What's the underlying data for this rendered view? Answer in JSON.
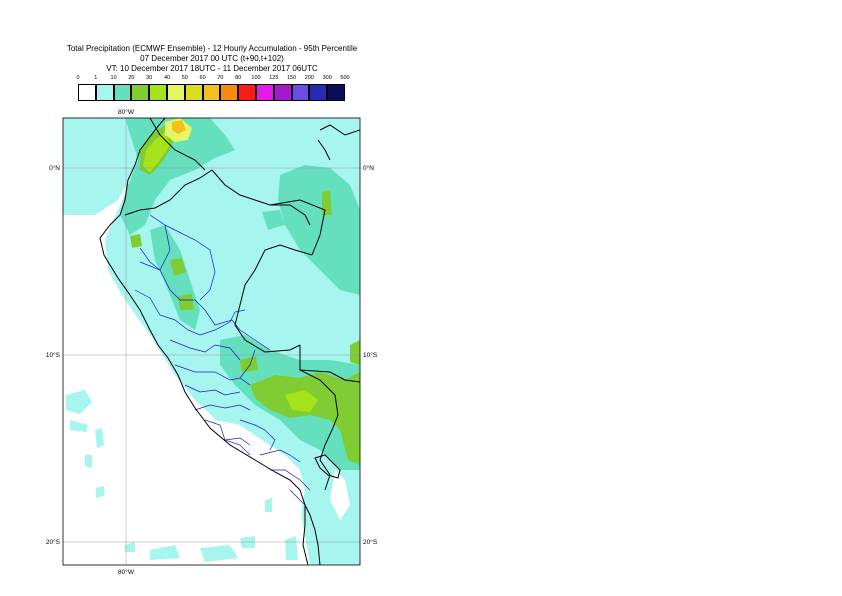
{
  "title": {
    "line1": "Total Precipitation (ECMWF Ensemble) - 12 Hourly Accumulation - 95th Percentile",
    "line2": "07 December 2017 00 UTC (t+90,t+102)",
    "line3": "VT: 10 December 2017 18UTC - 11 December 2017 06UTC"
  },
  "legend": {
    "thresholds": [
      "0",
      "1",
      "10",
      "20",
      "30",
      "40",
      "50",
      "60",
      "70",
      "80",
      "100",
      "125",
      "150",
      "200",
      "300",
      "500"
    ],
    "colors": [
      "#ffffff",
      "#a6f5ef",
      "#65e0bf",
      "#7fcc33",
      "#a6e31a",
      "#e6f566",
      "#d9de1f",
      "#f2c01f",
      "#f78a0f",
      "#ff1a1a",
      "#e619e6",
      "#a319cc",
      "#6b4de6",
      "#2929b3",
      "#0d0d59"
    ]
  },
  "map": {
    "lon_label": "80°W",
    "lat_labels": [
      "0°N",
      "10°S",
      "20°S"
    ],
    "colors": {
      "ocean": "#ffffff",
      "light": "#a6f5ef",
      "medium": "#65e0bf",
      "green": "#7fcc33",
      "yellowgreen": "#a6e31a",
      "yellow": "#e6f566",
      "orange": "#f2c01f",
      "coast": "#000000",
      "region_border": "#1a1acc",
      "grid": "#999999"
    }
  }
}
